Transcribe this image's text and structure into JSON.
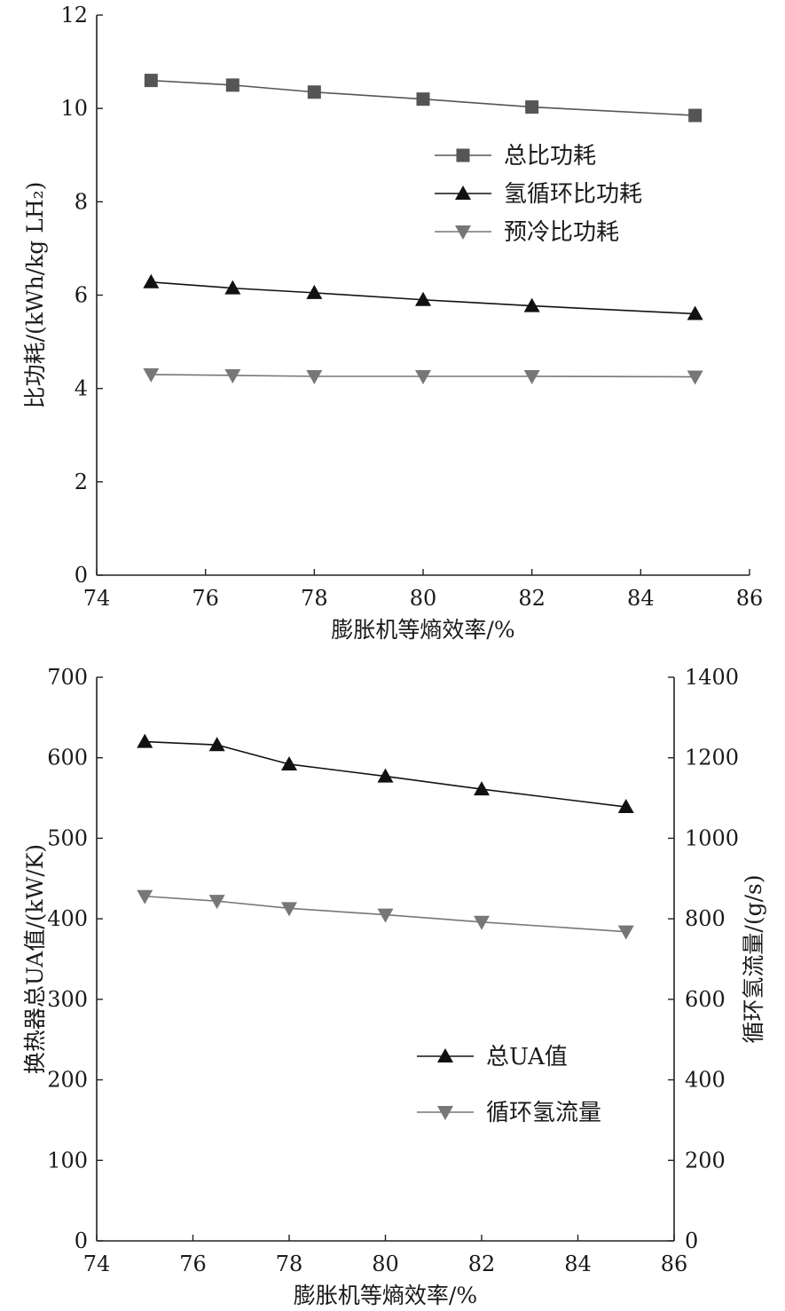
{
  "chart_data": [
    {
      "type": "line",
      "xlabel": "膨胀机等熵效率/%",
      "ylabel": "比功耗/(kWh/kg LH₂)",
      "xlim": [
        74,
        86
      ],
      "ylim": [
        0,
        12
      ],
      "xticks": [
        74,
        76,
        78,
        80,
        82,
        84,
        86
      ],
      "yticks": [
        0,
        2,
        4,
        6,
        8,
        10,
        12
      ],
      "legend_position": "center-right",
      "series": [
        {
          "name": "总比功耗",
          "marker": "square",
          "color": "#555555",
          "x": [
            75,
            76.5,
            78,
            80,
            82,
            85
          ],
          "y": [
            10.6,
            10.5,
            10.35,
            10.2,
            10.03,
            9.85
          ]
        },
        {
          "name": "氢循环比功耗",
          "marker": "triangle-up",
          "color": "#111111",
          "x": [
            75,
            76.5,
            78,
            80,
            82,
            85
          ],
          "y": [
            6.28,
            6.15,
            6.05,
            5.9,
            5.77,
            5.6
          ]
        },
        {
          "name": "预冷比功耗",
          "marker": "triangle-down",
          "color": "#777777",
          "x": [
            75,
            76.5,
            78,
            80,
            82,
            85
          ],
          "y": [
            4.3,
            4.28,
            4.26,
            4.26,
            4.26,
            4.25
          ]
        }
      ]
    },
    {
      "type": "line",
      "xlabel": "膨胀机等熵效率/%",
      "ylabel": "换热器总UA值/(kW/K)",
      "y2label": "循环氢流量/(g/s)",
      "xlim": [
        74,
        86
      ],
      "ylim": [
        0,
        700
      ],
      "y2lim": [
        0,
        1400
      ],
      "xticks": [
        74,
        76,
        78,
        80,
        82,
        84,
        86
      ],
      "yticks": [
        0,
        100,
        200,
        300,
        400,
        500,
        600,
        700
      ],
      "y2ticks": [
        0,
        200,
        400,
        600,
        800,
        1000,
        1200,
        1400
      ],
      "legend_position": "lower-center",
      "series": [
        {
          "name": "总UA值",
          "marker": "triangle-up",
          "color": "#111111",
          "axis": "left",
          "x": [
            75,
            76.5,
            78,
            80,
            82,
            85
          ],
          "y": [
            620,
            616,
            592,
            577,
            561,
            539
          ]
        },
        {
          "name": "循环氢流量",
          "marker": "triangle-down",
          "color": "#777777",
          "axis": "right",
          "x": [
            75,
            76.5,
            78,
            80,
            82,
            85
          ],
          "y": [
            856,
            844,
            826,
            810,
            792,
            768
          ]
        }
      ]
    }
  ]
}
